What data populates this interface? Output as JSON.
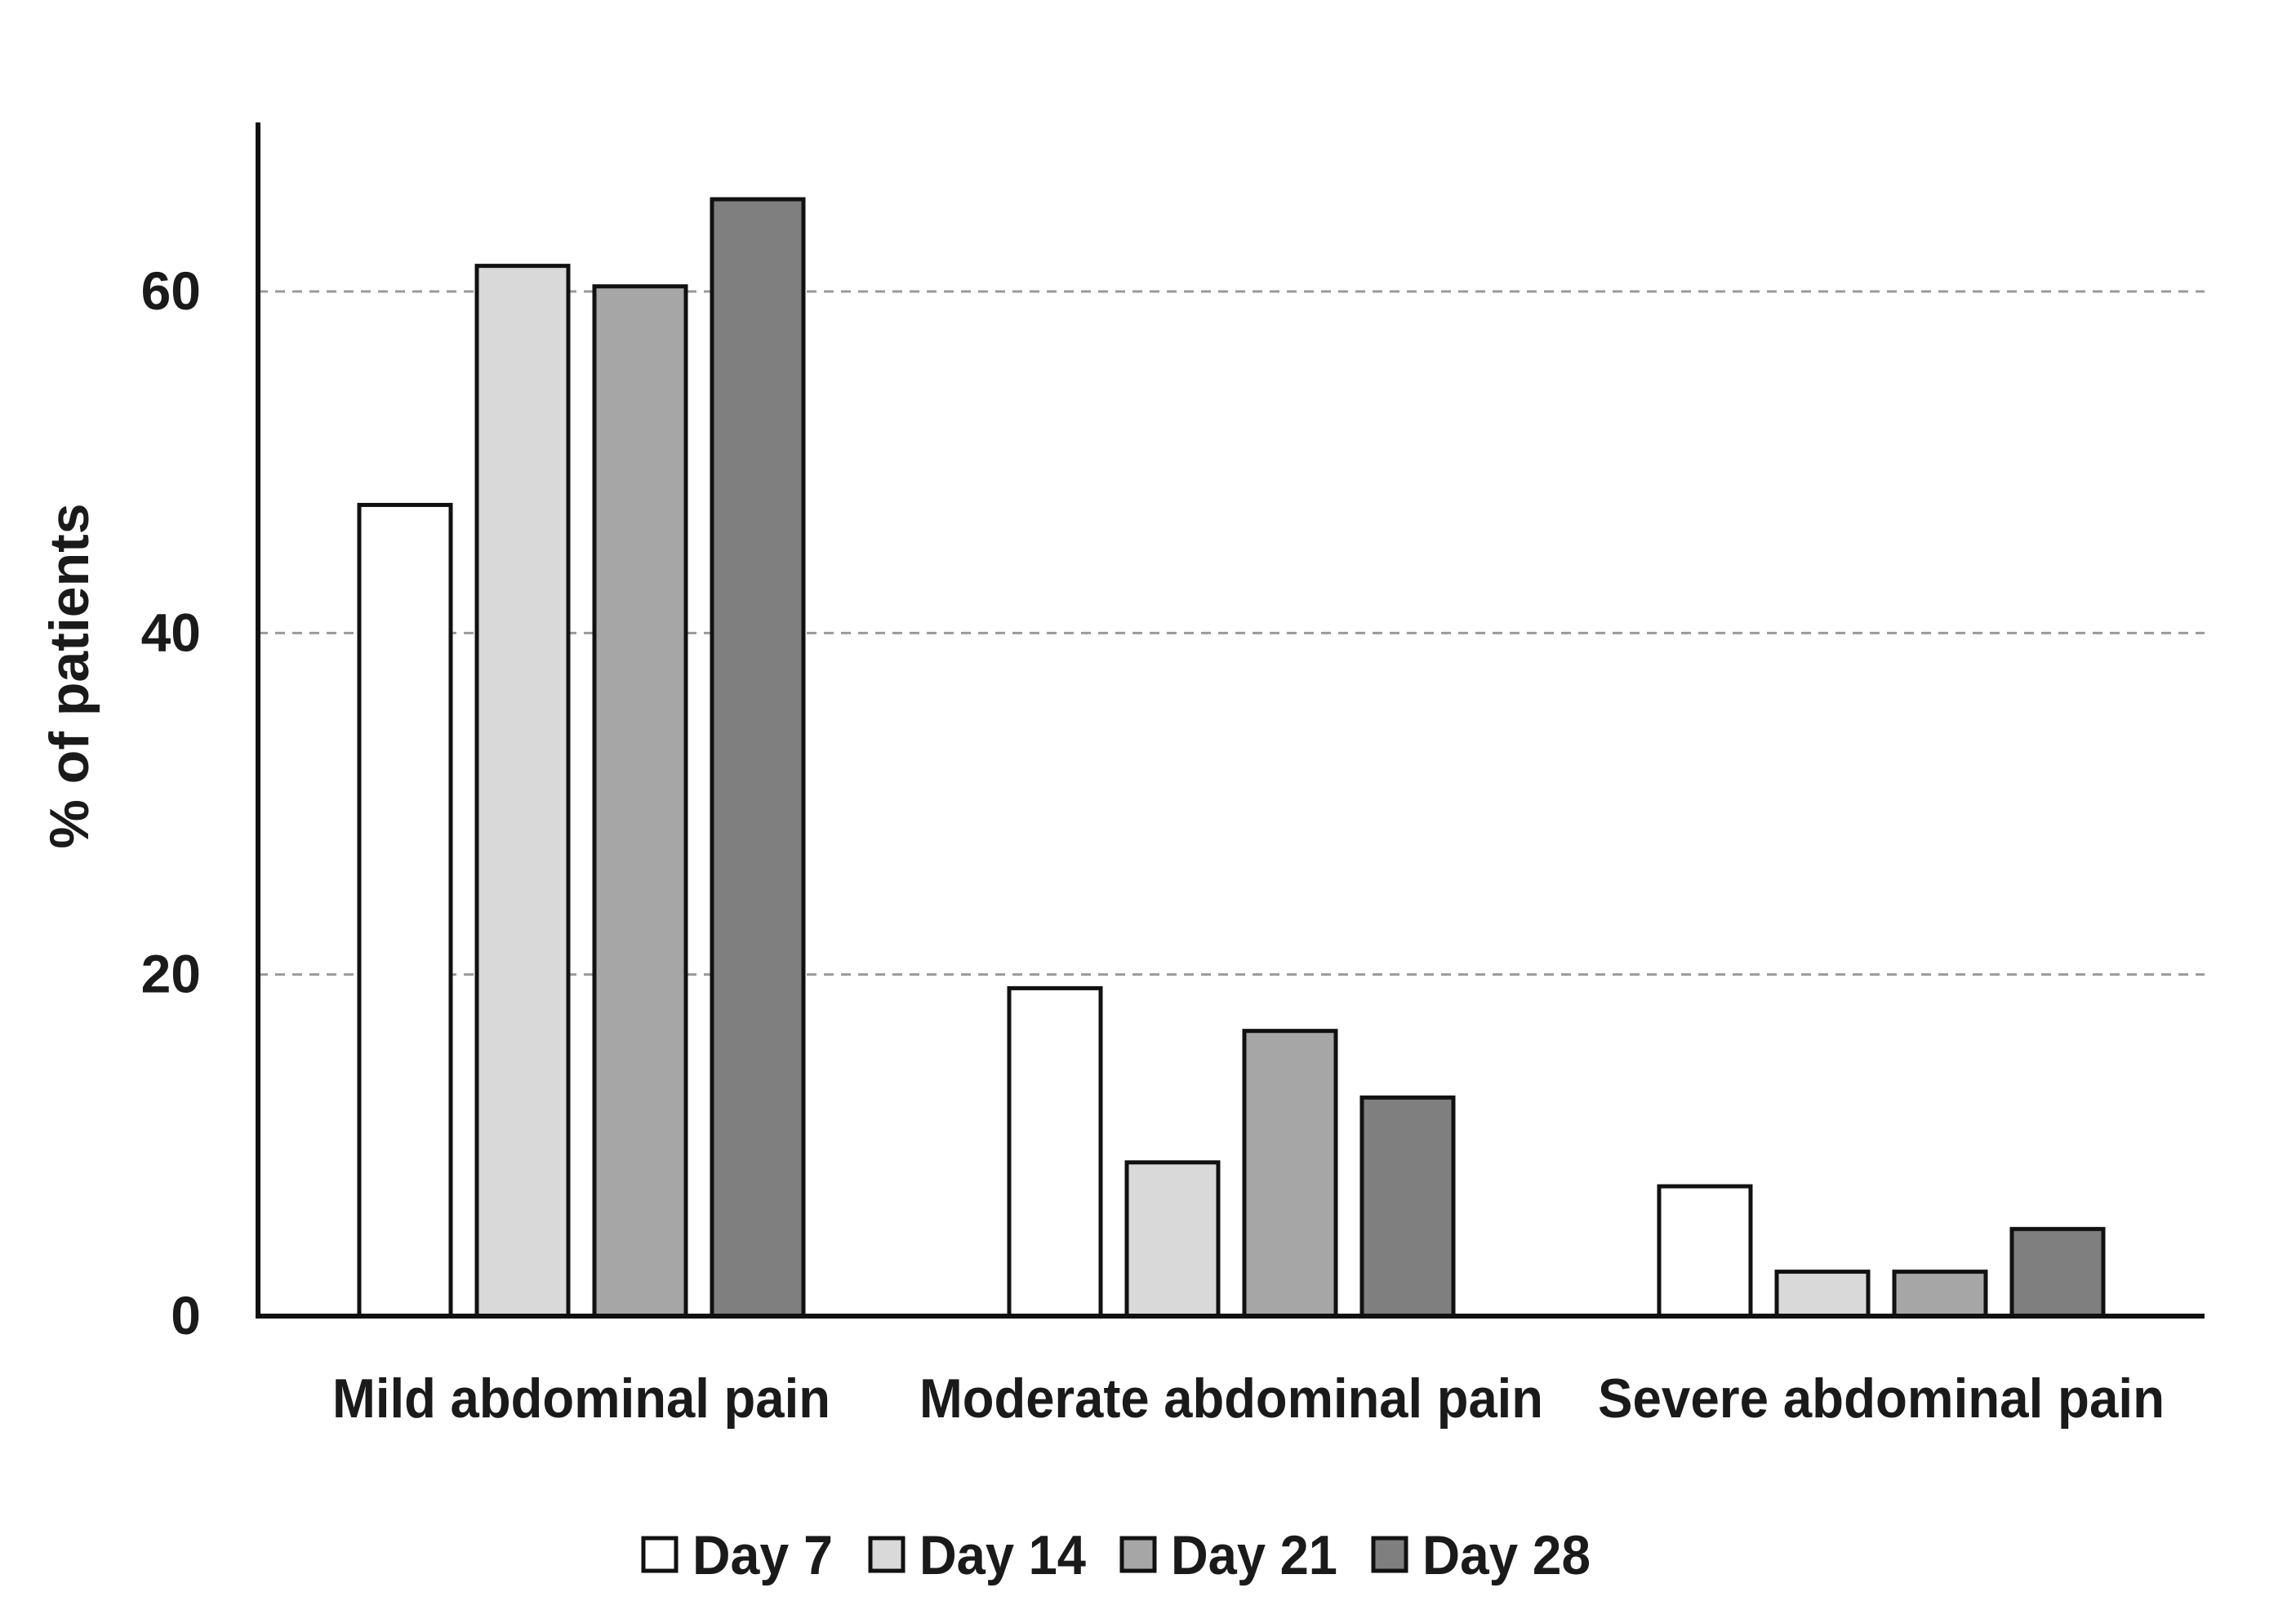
{
  "chart_data": {
    "type": "bar",
    "title": "",
    "xlabel": "",
    "ylabel": "% of patients",
    "ylim": [
      0,
      70
    ],
    "yticks": [
      0,
      20,
      40,
      60
    ],
    "grid": "horizontal dashed",
    "legend_position": "bottom",
    "categories": [
      "Mild abdominal pain",
      "Moderate abdominal pain",
      "Severe abdominal pain"
    ],
    "series": [
      {
        "name": "Day 7",
        "color": "#ffffff",
        "values": [
          47.5,
          19.2,
          7.6
        ]
      },
      {
        "name": "Day 14",
        "color": "#d9d9d9",
        "values": [
          61.5,
          9.0,
          2.6
        ]
      },
      {
        "name": "Day 21",
        "color": "#a6a6a6",
        "values": [
          60.3,
          16.7,
          2.6
        ]
      },
      {
        "name": "Day 28",
        "color": "#7f7f7f",
        "values": [
          65.4,
          12.8,
          5.1
        ]
      }
    ]
  }
}
